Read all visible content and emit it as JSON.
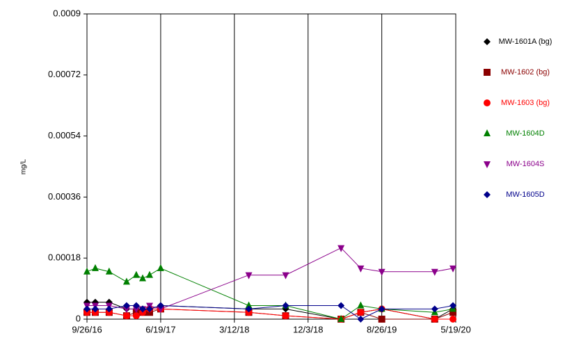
{
  "chart_data": {
    "type": "line",
    "y_label": "mg/L",
    "x": [
      "2016-09-26",
      "2016-10-26",
      "2016-12-15",
      "2017-02-16",
      "2017-03-23",
      "2017-04-15",
      "2017-05-10",
      "2017-06-19",
      "2018-05-03",
      "2018-09-13",
      "2019-04-01",
      "2019-06-11",
      "2019-08-26",
      "2020-03-04",
      "2020-05-09"
    ],
    "series": [
      {
        "name": "MW-1601A (bg)",
        "color": "#000000",
        "marker": "diamond",
        "values": [
          5e-05,
          5e-05,
          5e-05,
          3e-05,
          3e-05,
          3e-05,
          3e-05,
          4e-05,
          3e-05,
          3e-05,
          0,
          2e-05,
          3e-05,
          0,
          3e-05
        ]
      },
      {
        "name": "MW-1602 (bg)",
        "color": "#8b0000",
        "marker": "square",
        "values": [
          2e-05,
          2e-05,
          2e-05,
          1e-05,
          2e-05,
          2e-05,
          2e-05,
          3e-05,
          2e-05,
          1e-05,
          0,
          2e-05,
          0,
          0,
          2e-05
        ]
      },
      {
        "name": "MW-1603 (bg)",
        "color": "#ff0000",
        "marker": "circle",
        "values": [
          2e-05,
          2e-05,
          2e-05,
          1e-05,
          1e-05,
          2e-05,
          3e-05,
          3e-05,
          2e-05,
          1e-05,
          0,
          2e-05,
          3e-05,
          0,
          0
        ]
      },
      {
        "name": "MW-1604D",
        "color": "#008000",
        "marker": "triangle-up",
        "values": [
          0.00014,
          0.00015,
          0.00014,
          0.00011,
          0.00013,
          0.00012,
          0.00013,
          0.00015,
          4e-05,
          4e-05,
          0,
          4e-05,
          3e-05,
          2e-05,
          3e-05
        ]
      },
      {
        "name": "MW-1604S",
        "color": "#8b008b",
        "marker": "triangle-down",
        "values": [
          4e-05,
          4e-05,
          4e-05,
          3e-05,
          3e-05,
          3e-05,
          4e-05,
          3e-05,
          0.00013,
          0.00013,
          0.00021,
          0.00015,
          0.00014,
          0.00014,
          0.00015
        ]
      },
      {
        "name": "MW-1605D",
        "color": "#00008b",
        "marker": "diamond",
        "values": [
          3e-05,
          3e-05,
          3e-05,
          4e-05,
          4e-05,
          3e-05,
          3e-05,
          4e-05,
          3e-05,
          4e-05,
          4e-05,
          0,
          3e-05,
          3e-05,
          4e-05
        ]
      }
    ],
    "xlim": [
      "2016-09-26",
      "2020-05-19"
    ],
    "xticks": [
      {
        "value": "2016-09-26",
        "label": "9/26/16"
      },
      {
        "value": "2017-06-19",
        "label": "6/19/17"
      },
      {
        "value": "2018-03-12",
        "label": "3/12/18"
      },
      {
        "value": "2018-12-03",
        "label": "12/3/18"
      },
      {
        "value": "2019-08-26",
        "label": "8/26/19"
      },
      {
        "value": "2020-05-19",
        "label": "5/19/20"
      }
    ],
    "ylim": [
      0,
      0.0009
    ],
    "yticks": [
      0,
      0.00018,
      0.00036,
      0.00054,
      0.00072,
      0.0009
    ],
    "grid": true,
    "legend": "right"
  }
}
